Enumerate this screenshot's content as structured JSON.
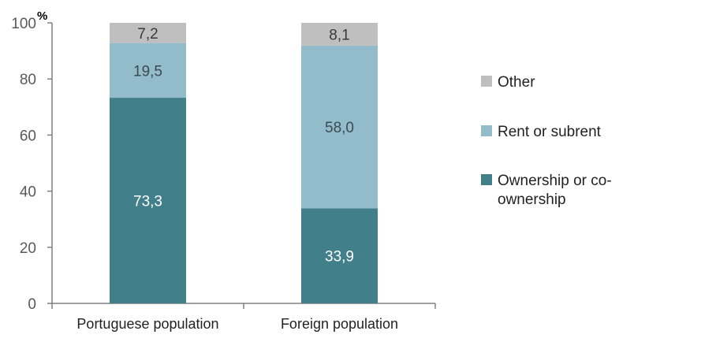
{
  "chart_data": {
    "type": "bar",
    "stacked": true,
    "title": "",
    "ylabel": "%",
    "xlabel": "",
    "ylim": [
      0,
      100
    ],
    "yticks": [
      0,
      20,
      40,
      60,
      80,
      100
    ],
    "categories": [
      "Portuguese population",
      "Foreign population"
    ],
    "series": [
      {
        "name": "Ownership or co-ownership",
        "legend_lines": [
          "Ownership or co-",
          "ownership"
        ],
        "values": [
          73.3,
          33.9
        ],
        "labels": [
          "73,3",
          "33,9"
        ],
        "color": "#417f8b",
        "label_color": "#ffffff"
      },
      {
        "name": "Rent or subrent",
        "legend_lines": [
          "Rent or subrent"
        ],
        "values": [
          19.5,
          58.0
        ],
        "labels": [
          "19,5",
          "58,0"
        ],
        "color": "#93bccb",
        "label_color": "#3a4a52"
      },
      {
        "name": "Other",
        "legend_lines": [
          "Other"
        ],
        "values": [
          7.2,
          8.1
        ],
        "labels": [
          "7,2",
          "8,1"
        ],
        "color": "#bfbfbf",
        "label_color": "#3a3a3a"
      }
    ],
    "legend_position": "right",
    "grid": false
  }
}
